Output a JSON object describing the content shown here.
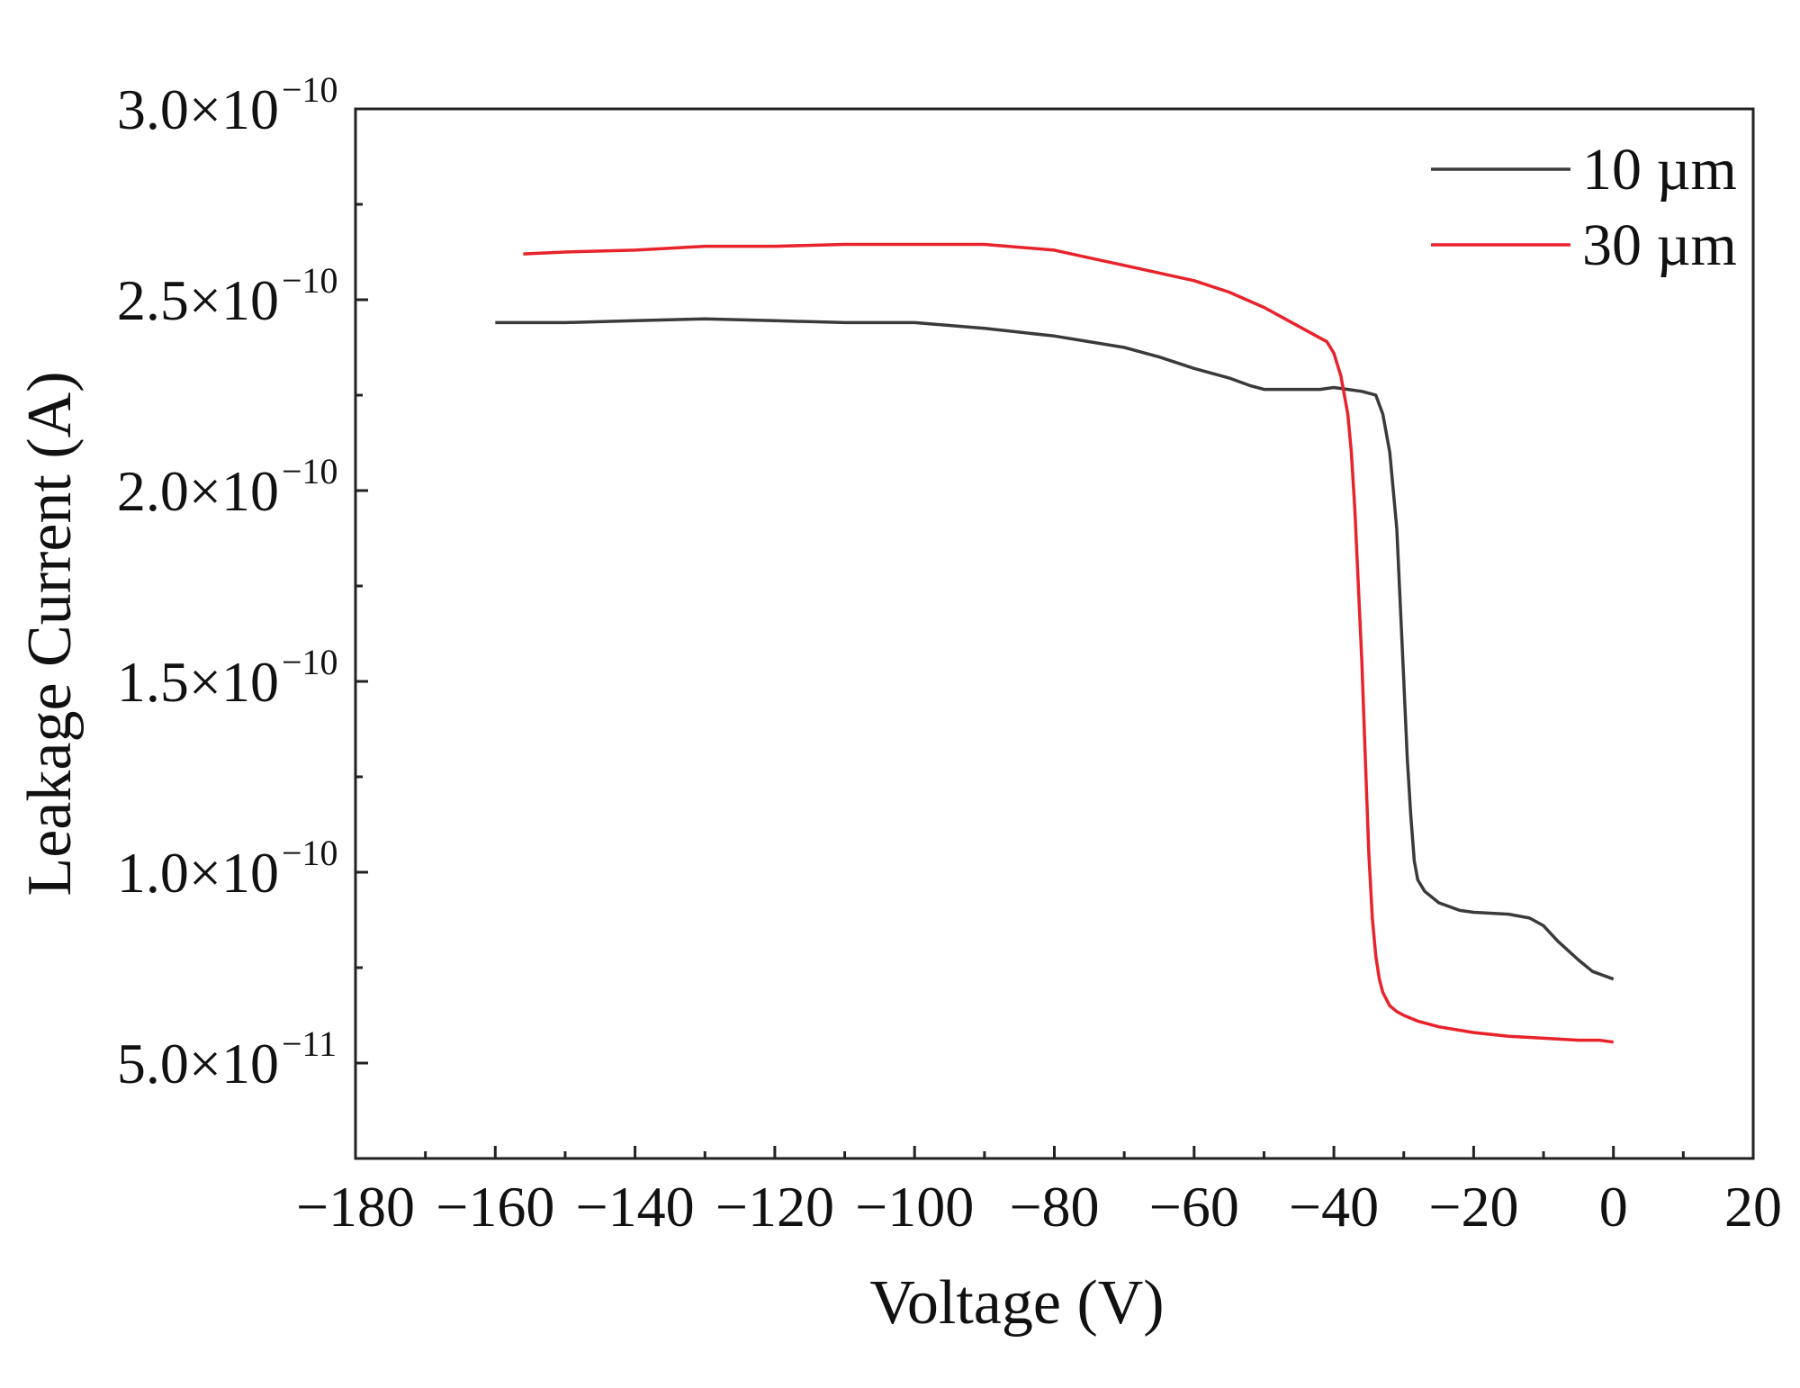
{
  "chart_data": {
    "type": "line",
    "title": "",
    "xlabel": "Voltage (V)",
    "ylabel": "Leakage Current (A)",
    "xlim": [
      -180,
      20
    ],
    "ylim": [
      2.5e-11,
      3e-10
    ],
    "x_ticks": [
      -180,
      -160,
      -140,
      -120,
      -100,
      -80,
      -60,
      -40,
      -20,
      0,
      20
    ],
    "x_tick_labels": [
      "−180",
      "−160",
      "−140",
      "−120",
      "−100",
      "−80",
      "−60",
      "−40",
      "−20",
      "0",
      "20"
    ],
    "y_ticks": [
      5e-11,
      1e-10,
      1.5e-10,
      2e-10,
      2.5e-10,
      3e-10
    ],
    "y_tick_labels": [
      {
        "mantissa": "5.0×10",
        "exponent": "−11"
      },
      {
        "mantissa": "1.0×10",
        "exponent": "−10"
      },
      {
        "mantissa": "1.5×10",
        "exponent": "−10"
      },
      {
        "mantissa": "2.0×10",
        "exponent": "−10"
      },
      {
        "mantissa": "2.5×10",
        "exponent": "−10"
      },
      {
        "mantissa": "3.0×10",
        "exponent": "−10"
      }
    ],
    "grid": false,
    "legend_position": "top-right",
    "series": [
      {
        "name": "10 µm",
        "color": "#3a3a3a",
        "x": [
          -160,
          -150,
          -140,
          -130,
          -120,
          -110,
          -100,
          -90,
          -80,
          -75,
          -70,
          -65,
          -60,
          -55,
          -52,
          -50,
          -48,
          -45,
          -42,
          -40,
          -38,
          -36,
          -34,
          -33,
          -32,
          -31,
          -30.5,
          -30,
          -29.5,
          -29,
          -28.5,
          -28,
          -27,
          -25,
          -22,
          -20,
          -15,
          -12,
          -10,
          -8,
          -5,
          -3,
          0
        ],
        "y": [
          2.44e-10,
          2.44e-10,
          2.445e-10,
          2.45e-10,
          2.445e-10,
          2.44e-10,
          2.44e-10,
          2.425e-10,
          2.405e-10,
          2.39e-10,
          2.375e-10,
          2.35e-10,
          2.32e-10,
          2.295e-10,
          2.275e-10,
          2.265e-10,
          2.265e-10,
          2.265e-10,
          2.265e-10,
          2.27e-10,
          2.265e-10,
          2.26e-10,
          2.25e-10,
          2.2e-10,
          2.1e-10,
          1.9e-10,
          1.7e-10,
          1.5e-10,
          1.3e-10,
          1.15e-10,
          1.03e-10,
          9.8e-11,
          9.5e-11,
          9.2e-11,
          9e-11,
          8.95e-11,
          8.9e-11,
          8.8e-11,
          8.6e-11,
          8.2e-11,
          7.7e-11,
          7.4e-11,
          7.2e-11
        ]
      },
      {
        "name": "30 µm",
        "color": "#e8232b",
        "x": [
          -156,
          -150,
          -140,
          -130,
          -120,
          -110,
          -100,
          -90,
          -80,
          -75,
          -70,
          -65,
          -60,
          -55,
          -50,
          -47,
          -45,
          -43,
          -41,
          -40,
          -39,
          -38,
          -37.5,
          -37,
          -36.5,
          -36,
          -35.5,
          -35,
          -34.5,
          -34,
          -33.5,
          -33,
          -32,
          -31,
          -30,
          -28,
          -25,
          -20,
          -15,
          -10,
          -5,
          -2,
          0
        ],
        "y": [
          2.62e-10,
          2.625e-10,
          2.63e-10,
          2.64e-10,
          2.64e-10,
          2.645e-10,
          2.645e-10,
          2.645e-10,
          2.63e-10,
          2.61e-10,
          2.59e-10,
          2.57e-10,
          2.55e-10,
          2.52e-10,
          2.48e-10,
          2.45e-10,
          2.43e-10,
          2.41e-10,
          2.39e-10,
          2.36e-10,
          2.3e-10,
          2.2e-10,
          2.1e-10,
          1.95e-10,
          1.75e-10,
          1.55e-10,
          1.3e-10,
          1.05e-10,
          8.8e-11,
          7.8e-11,
          7.2e-11,
          6.85e-11,
          6.5e-11,
          6.35e-11,
          6.25e-11,
          6.1e-11,
          5.95e-11,
          5.8e-11,
          5.7e-11,
          5.65e-11,
          5.6e-11,
          5.6e-11,
          5.55e-11
        ]
      }
    ]
  }
}
